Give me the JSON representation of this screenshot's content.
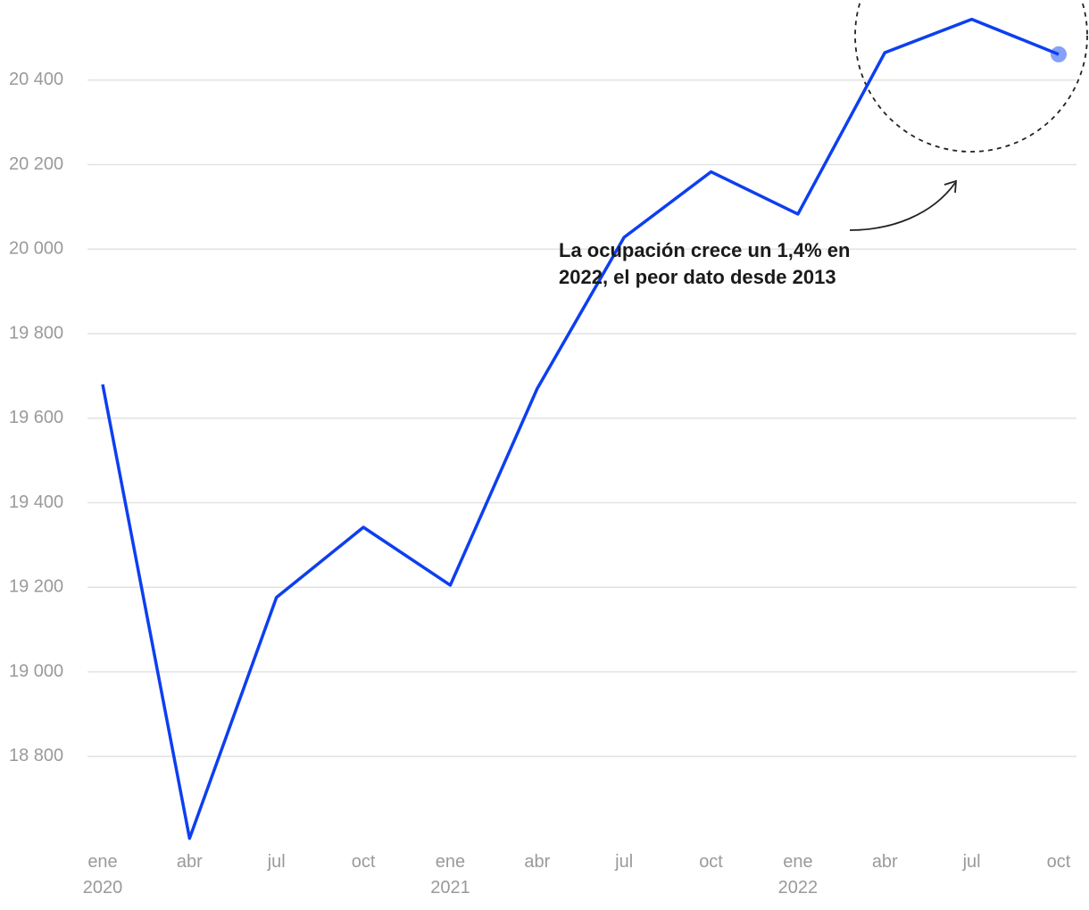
{
  "chart_data": {
    "type": "line",
    "categories": [
      "ene 2020",
      "abr",
      "jul",
      "oct",
      "ene 2021",
      "abr",
      "jul",
      "oct",
      "ene 2022",
      "abr",
      "jul",
      "oct"
    ],
    "series": [
      {
        "color": "#0d3ff0",
        "values": [
          19680,
          18606,
          19176,
          19342,
          19205,
          19670,
          20028,
          20183,
          20083,
          20465,
          20544,
          20461
        ]
      }
    ],
    "ylim": [
      18580,
      20560
    ],
    "yticks": [
      {
        "value": 18800,
        "label": "18 800"
      },
      {
        "value": 19000,
        "label": "19 000"
      },
      {
        "value": 19200,
        "label": "19 200"
      },
      {
        "value": 19400,
        "label": "19 400"
      },
      {
        "value": 19600,
        "label": "19 600"
      },
      {
        "value": 19800,
        "label": "19 800"
      },
      {
        "value": 20000,
        "label": "20 000"
      },
      {
        "value": 20200,
        "label": "20 200"
      },
      {
        "value": 20400,
        "label": "20 400"
      }
    ],
    "grid": true,
    "annotation": "La ocupación crece un 1,4% en 2022, el peor dato desde 2013"
  }
}
